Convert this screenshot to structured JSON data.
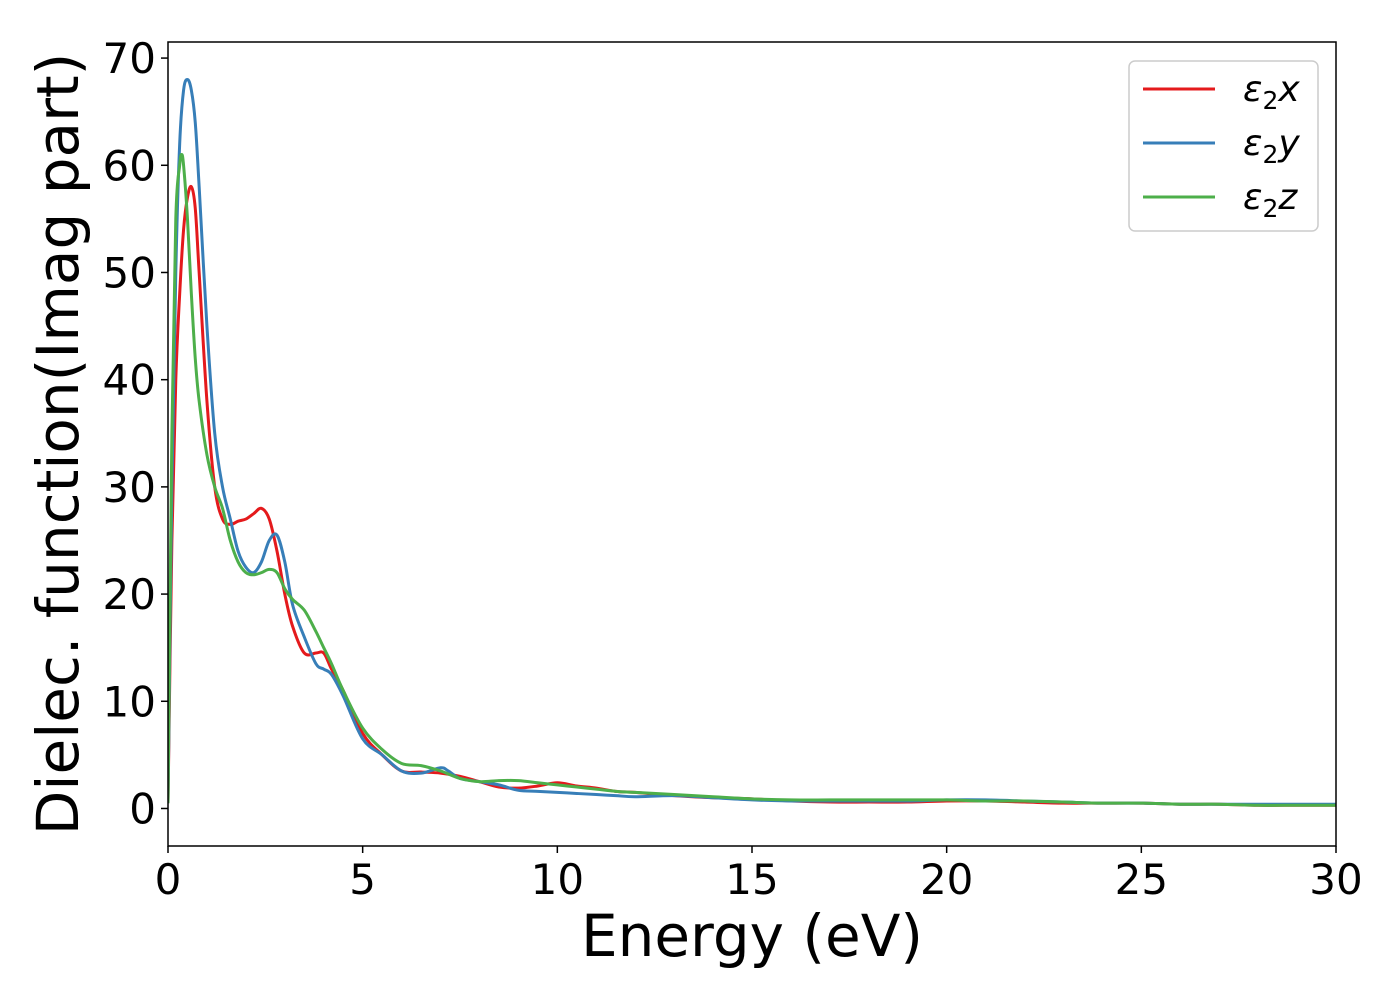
{
  "chart_data": {
    "type": "line",
    "xlabel": "Energy (eV)",
    "ylabel": "Dielec. function(Imag part)",
    "xlim": [
      0,
      30
    ],
    "ylim": [
      -3.5,
      71.5
    ],
    "xticks": [
      0,
      5,
      10,
      15,
      20,
      25,
      30
    ],
    "yticks": [
      0,
      10,
      20,
      30,
      40,
      50,
      60,
      70
    ],
    "grid": false,
    "legend_position": "top-right",
    "series": [
      {
        "name": "ε₂x",
        "legend_base": "ε",
        "legend_sub": "2",
        "legend_suffix": "x",
        "color": "#e41a1c",
        "x": [
          0,
          0.1,
          0.2,
          0.3,
          0.4,
          0.5,
          0.6,
          0.7,
          0.8,
          1.0,
          1.2,
          1.4,
          1.6,
          1.8,
          2.0,
          2.2,
          2.4,
          2.6,
          2.8,
          3.0,
          3.2,
          3.5,
          3.8,
          4.0,
          4.2,
          4.5,
          5.0,
          5.5,
          6.0,
          6.5,
          7.0,
          7.5,
          8.0,
          8.5,
          9.0,
          9.5,
          10.0,
          10.5,
          11.0,
          11.5,
          12.0,
          13.0,
          14.0,
          15.0,
          16.0,
          17.0,
          18.0,
          19.0,
          20.0,
          21.0,
          22.0,
          23.0,
          24.0,
          25.0,
          26.0,
          27.0,
          28.0,
          29.0,
          30.0
        ],
        "values": [
          0.5,
          25,
          40,
          48,
          54,
          57,
          58,
          56,
          50,
          38,
          30,
          27,
          26.5,
          26.8,
          27,
          27.5,
          28,
          27,
          24,
          20,
          17,
          14.5,
          14.5,
          14.5,
          13,
          11,
          7,
          5,
          3.5,
          3.4,
          3.3,
          3.0,
          2.5,
          2.0,
          1.9,
          2.1,
          2.4,
          2.1,
          1.9,
          1.6,
          1.5,
          1.2,
          1.0,
          0.9,
          0.7,
          0.6,
          0.6,
          0.6,
          0.7,
          0.7,
          0.6,
          0.5,
          0.5,
          0.5,
          0.4,
          0.4,
          0.3,
          0.3,
          0.3
        ]
      },
      {
        "name": "ε₂y",
        "legend_base": "ε",
        "legend_sub": "2",
        "legend_suffix": "y",
        "color": "#377eb8",
        "x": [
          0,
          0.1,
          0.2,
          0.3,
          0.4,
          0.5,
          0.6,
          0.7,
          0.8,
          1.0,
          1.2,
          1.4,
          1.6,
          1.8,
          2.0,
          2.2,
          2.4,
          2.6,
          2.8,
          3.0,
          3.2,
          3.5,
          3.8,
          4.0,
          4.2,
          4.5,
          5.0,
          5.5,
          6.0,
          6.5,
          7.0,
          7.2,
          7.5,
          8.0,
          8.5,
          9.0,
          9.5,
          10.0,
          10.5,
          11.0,
          11.5,
          12.0,
          13.0,
          14.0,
          15.0,
          16.0,
          17.0,
          18.0,
          19.0,
          20.0,
          21.0,
          22.0,
          23.0,
          24.0,
          25.0,
          26.0,
          27.0,
          28.0,
          29.0,
          30.0
        ],
        "values": [
          0.5,
          30,
          50,
          62,
          67,
          68,
          67,
          64,
          58,
          45,
          35,
          30,
          27,
          24,
          22.5,
          22,
          23,
          25,
          25.5,
          23,
          19,
          16,
          13.5,
          13,
          12.5,
          10.5,
          6.5,
          5,
          3.5,
          3.3,
          3.8,
          3.5,
          2.8,
          2.5,
          2.2,
          1.7,
          1.6,
          1.5,
          1.4,
          1.3,
          1.2,
          1.1,
          1.2,
          1.0,
          0.8,
          0.7,
          0.7,
          0.7,
          0.7,
          0.8,
          0.8,
          0.7,
          0.6,
          0.5,
          0.5,
          0.4,
          0.4,
          0.4,
          0.4,
          0.4
        ]
      },
      {
        "name": "ε₂z",
        "legend_base": "ε",
        "legend_sub": "2",
        "legend_suffix": "z",
        "color": "#4daf4a",
        "x": [
          0,
          0.1,
          0.2,
          0.3,
          0.35,
          0.4,
          0.5,
          0.6,
          0.7,
          0.8,
          1.0,
          1.2,
          1.4,
          1.6,
          1.8,
          2.0,
          2.2,
          2.4,
          2.6,
          2.8,
          3.0,
          3.2,
          3.5,
          3.8,
          4.0,
          4.2,
          4.5,
          5.0,
          5.5,
          6.0,
          6.5,
          7.0,
          7.5,
          8.0,
          8.5,
          9.0,
          9.5,
          10.0,
          10.5,
          11.0,
          11.5,
          12.0,
          13.0,
          14.0,
          15.0,
          16.0,
          17.0,
          18.0,
          19.0,
          20.0,
          21.0,
          22.0,
          23.0,
          24.0,
          25.0,
          26.0,
          27.0,
          28.0,
          29.0,
          30.0
        ],
        "values": [
          0.5,
          35,
          55,
          60,
          61,
          60,
          55,
          48,
          42,
          38,
          33,
          30,
          28,
          25,
          23,
          22,
          21.8,
          22,
          22.3,
          22,
          20.5,
          19.5,
          18.5,
          16.5,
          15,
          13.5,
          11,
          7.5,
          5.5,
          4.2,
          4.0,
          3.5,
          2.8,
          2.5,
          2.6,
          2.6,
          2.4,
          2.2,
          2.0,
          1.8,
          1.6,
          1.5,
          1.3,
          1.1,
          0.9,
          0.8,
          0.8,
          0.8,
          0.8,
          0.8,
          0.7,
          0.7,
          0.6,
          0.5,
          0.5,
          0.4,
          0.4,
          0.3,
          0.3,
          0.3
        ]
      }
    ]
  }
}
